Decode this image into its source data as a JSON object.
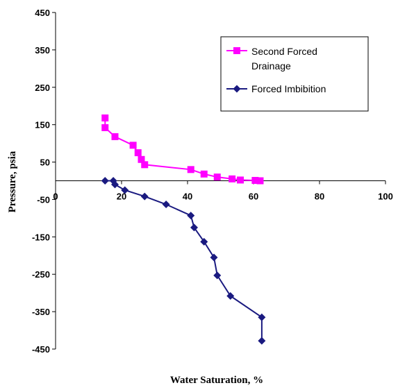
{
  "chart_data": {
    "type": "scatter",
    "title": "",
    "xlabel": "Water Saturation, %",
    "ylabel": "Pressure, psia",
    "xlim": [
      0,
      100
    ],
    "ylim": [
      -450,
      450
    ],
    "x_ticks": [
      0,
      20,
      40,
      60,
      80,
      100
    ],
    "y_ticks": [
      450,
      350,
      250,
      150,
      50,
      -50,
      -150,
      -250,
      -350,
      -450
    ],
    "grid": false,
    "legend_position": "top-right",
    "series": [
      {
        "name": "Second Forced Drainage",
        "color": "#ff00ff",
        "marker": "square",
        "line": true,
        "points": [
          {
            "x": 15.0,
            "y": 168
          },
          {
            "x": 15.0,
            "y": 142
          },
          {
            "x": 18.0,
            "y": 118
          },
          {
            "x": 23.5,
            "y": 95
          },
          {
            "x": 25.0,
            "y": 75
          },
          {
            "x": 26.0,
            "y": 57
          },
          {
            "x": 27.0,
            "y": 43
          },
          {
            "x": 41.0,
            "y": 30
          },
          {
            "x": 45.0,
            "y": 18
          },
          {
            "x": 49.0,
            "y": 10
          },
          {
            "x": 53.5,
            "y": 5
          },
          {
            "x": 56.0,
            "y": 2
          },
          {
            "x": 60.5,
            "y": 1
          },
          {
            "x": 62.0,
            "y": 0
          }
        ]
      },
      {
        "name": "Forced Imbibition",
        "color": "#1a1a80",
        "marker": "diamond",
        "line": true,
        "points": [
          {
            "x": 15.0,
            "y": 0
          },
          {
            "x": 17.5,
            "y": 0
          },
          {
            "x": 18.0,
            "y": -10
          },
          {
            "x": 21.0,
            "y": -25
          },
          {
            "x": 27.0,
            "y": -42
          },
          {
            "x": 33.5,
            "y": -63
          },
          {
            "x": 41.0,
            "y": -93
          },
          {
            "x": 42.0,
            "y": -125
          },
          {
            "x": 45.0,
            "y": -163
          },
          {
            "x": 48.0,
            "y": -205
          },
          {
            "x": 49.0,
            "y": -253
          },
          {
            "x": 53.0,
            "y": -308
          },
          {
            "x": 62.5,
            "y": -365
          },
          {
            "x": 62.5,
            "y": -428
          }
        ]
      }
    ]
  }
}
